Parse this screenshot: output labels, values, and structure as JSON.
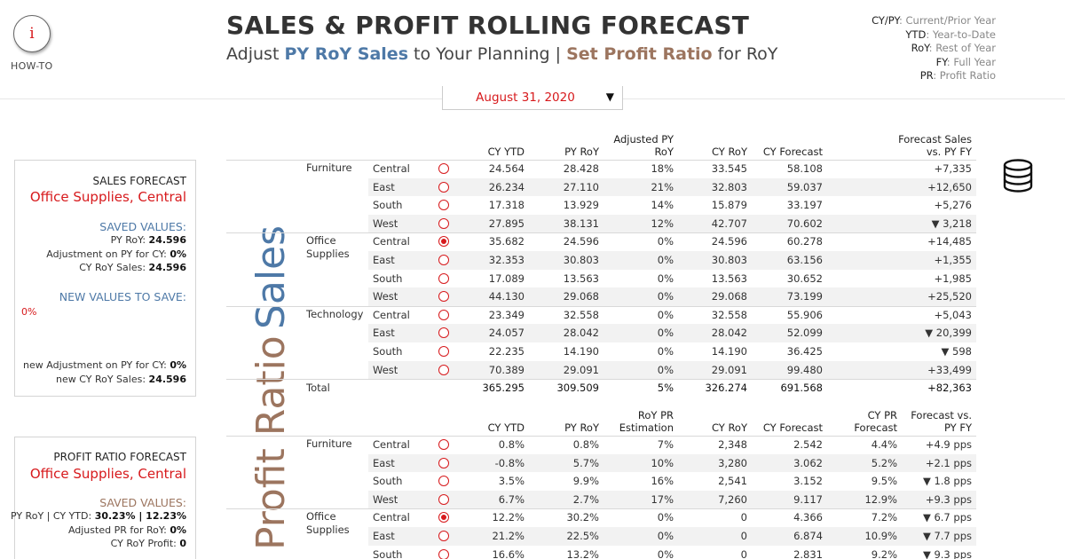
{
  "header": {
    "howto_icon": "i",
    "howto_label": "HOW-TO",
    "title": "SALES & PROFIT ROLLING FORECAST",
    "subtitle": {
      "p1": "Adjust ",
      "b1": "PY RoY Sales",
      "p2": " to Your Planning | ",
      "b2": "Set Profit Ratio",
      "p3": " for RoY"
    },
    "legend": [
      {
        "key": "CY/PY",
        "val": ": Current/Prior Year"
      },
      {
        "key": "YTD",
        "val": ": Year-to-Date"
      },
      {
        "key": "RoY",
        "val": ": Rest of Year"
      },
      {
        "key": "FY",
        "val": ": Full Year"
      },
      {
        "key": "PR",
        "val": ": Profit Ratio"
      }
    ],
    "date_value": "August 31, 2020",
    "date_arrow": "▼"
  },
  "sales_panel": {
    "title": "SALES FORECAST",
    "selection": "Office Supplies, Central",
    "saved_heading": "SAVED VALUES:",
    "saved": [
      {
        "label": "PY RoY: ",
        "value": "24.596"
      },
      {
        "label": "Adjustment on PY for CY: ",
        "value": "0%"
      },
      {
        "label": "CY RoY Sales: ",
        "value": "24.596"
      }
    ],
    "new_heading": "NEW VALUES TO SAVE:",
    "new_pct": "0%",
    "new": [
      {
        "label": "new Adjustment on PY for CY: ",
        "value": "0%"
      },
      {
        "label": "new CY RoY Sales: ",
        "value": "24.596"
      }
    ]
  },
  "profit_panel": {
    "title": "PROFIT RATIO FORECAST",
    "selection": "Office Supplies, Central",
    "saved_heading": "SAVED VALUES:",
    "saved": [
      {
        "label": "PY RoY | CY YTD: ",
        "value": "30.23% | 12.23%"
      },
      {
        "label": "Adjusted PR for RoY: ",
        "value": "0%"
      },
      {
        "label": "CY RoY Profit: ",
        "value": "0"
      }
    ]
  },
  "sections": {
    "sales": "Sales",
    "ratio": "Profit Ratio"
  },
  "sales_table": {
    "headers": [
      "CY YTD",
      "PY RoY",
      "Adjusted PY\nRoY",
      "CY RoY",
      "CY Forecast",
      "Forecast Sales\nvs. PY FY"
    ],
    "categories": [
      {
        "name": "Furniture",
        "rows": [
          {
            "region": "Central",
            "selected": false,
            "v": [
              "24.564",
              "28.428",
              "18%",
              "33.545",
              "58.108",
              "+7,335"
            ]
          },
          {
            "region": "East",
            "selected": false,
            "v": [
              "26.234",
              "27.110",
              "21%",
              "32.803",
              "59.037",
              "+12,650"
            ]
          },
          {
            "region": "South",
            "selected": false,
            "v": [
              "17.318",
              "13.929",
              "14%",
              "15.879",
              "33.197",
              "+5,276"
            ]
          },
          {
            "region": "West",
            "selected": false,
            "v": [
              "27.895",
              "38.131",
              "12%",
              "42.707",
              "70.602",
              "▼ 3,218"
            ]
          }
        ]
      },
      {
        "name": "Office\nSupplies",
        "rows": [
          {
            "region": "Central",
            "selected": true,
            "v": [
              "35.682",
              "24.596",
              "0%",
              "24.596",
              "60.278",
              "+14,485"
            ]
          },
          {
            "region": "East",
            "selected": false,
            "v": [
              "32.353",
              "30.803",
              "0%",
              "30.803",
              "63.156",
              "+1,355"
            ]
          },
          {
            "region": "South",
            "selected": false,
            "v": [
              "17.089",
              "13.563",
              "0%",
              "13.563",
              "30.652",
              "+1,985"
            ]
          },
          {
            "region": "West",
            "selected": false,
            "v": [
              "44.130",
              "29.068",
              "0%",
              "29.068",
              "73.199",
              "+25,520"
            ]
          }
        ]
      },
      {
        "name": "Technology",
        "rows": [
          {
            "region": "Central",
            "selected": false,
            "v": [
              "23.349",
              "32.558",
              "0%",
              "32.558",
              "55.906",
              "+5,043"
            ]
          },
          {
            "region": "East",
            "selected": false,
            "v": [
              "24.057",
              "28.042",
              "0%",
              "28.042",
              "52.099",
              "▼ 20,399"
            ]
          },
          {
            "region": "South",
            "selected": false,
            "v": [
              "22.235",
              "14.190",
              "0%",
              "14.190",
              "36.425",
              "▼ 598"
            ]
          },
          {
            "region": "West",
            "selected": false,
            "v": [
              "70.389",
              "29.091",
              "0%",
              "29.091",
              "99.480",
              "+33,499"
            ]
          }
        ]
      }
    ],
    "total": {
      "label": "Total",
      "v": [
        "365.295",
        "309.509",
        "5%",
        "326.274",
        "691.568",
        "+82,363"
      ]
    }
  },
  "profit_table": {
    "headers": [
      "CY YTD",
      "PY RoY",
      "RoY PR\nEstimation",
      "CY RoY",
      "CY Forecast",
      "CY PR\nForecast",
      "Forecast vs.\nPY FY"
    ],
    "categories": [
      {
        "name": "Furniture",
        "rows": [
          {
            "region": "Central",
            "selected": false,
            "v": [
              "0.8%",
              "0.8%",
              "7%",
              "2,348",
              "2.542",
              "4.4%",
              "+4.9 pps"
            ]
          },
          {
            "region": "East",
            "selected": false,
            "v": [
              "-0.8%",
              "5.7%",
              "10%",
              "3,280",
              "3.062",
              "5.2%",
              "+2.1 pps"
            ]
          },
          {
            "region": "South",
            "selected": false,
            "v": [
              "3.5%",
              "9.9%",
              "16%",
              "2,541",
              "3.152",
              "9.5%",
              "▼ 1.8 pps"
            ]
          },
          {
            "region": "West",
            "selected": false,
            "v": [
              "6.7%",
              "2.7%",
              "17%",
              "7,260",
              "9.117",
              "12.9%",
              "+9.3 pps"
            ]
          }
        ]
      },
      {
        "name": "Office\nSupplies",
        "rows": [
          {
            "region": "Central",
            "selected": true,
            "v": [
              "12.2%",
              "30.2%",
              "0%",
              "0",
              "4.366",
              "7.2%",
              "▼ 6.7 pps"
            ]
          },
          {
            "region": "East",
            "selected": false,
            "v": [
              "21.2%",
              "22.5%",
              "0%",
              "0",
              "6.874",
              "10.9%",
              "▼ 7.7 pps"
            ]
          },
          {
            "region": "South",
            "selected": false,
            "v": [
              "16.6%",
              "13.2%",
              "0%",
              "0",
              "2.831",
              "9.2%",
              "▼ 9.3 pps"
            ]
          }
        ]
      }
    ]
  }
}
